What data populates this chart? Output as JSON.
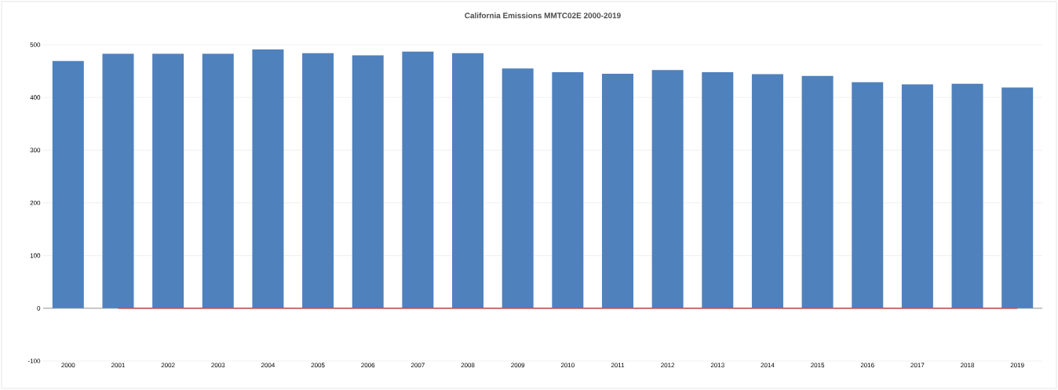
{
  "chart_data": {
    "type": "bar",
    "title": "California Emissions MMTC02E 2000-2019",
    "categories": [
      "2000",
      "2001",
      "2002",
      "2003",
      "2004",
      "2005",
      "2006",
      "2007",
      "2008",
      "2009",
      "2010",
      "2011",
      "2012",
      "2013",
      "2014",
      "2015",
      "2016",
      "2017",
      "2018",
      "2019"
    ],
    "series": [
      {
        "color": "#4f81bd",
        "values": [
          469,
          483,
          483,
          483,
          491,
          484,
          480,
          487,
          484,
          455,
          448,
          445,
          452,
          448,
          444,
          441,
          429,
          425,
          426,
          419
        ]
      },
      {
        "type": "line",
        "color": "#c0504d",
        "values": [
          null,
          0,
          0,
          0,
          0,
          0,
          0,
          0,
          0,
          0,
          0,
          0,
          0,
          0,
          0,
          0,
          0,
          0,
          0,
          0
        ]
      }
    ],
    "ylim": [
      -100,
      500
    ],
    "yticks": [
      -100,
      0,
      100,
      200,
      300,
      400,
      500
    ],
    "grid": "y"
  }
}
